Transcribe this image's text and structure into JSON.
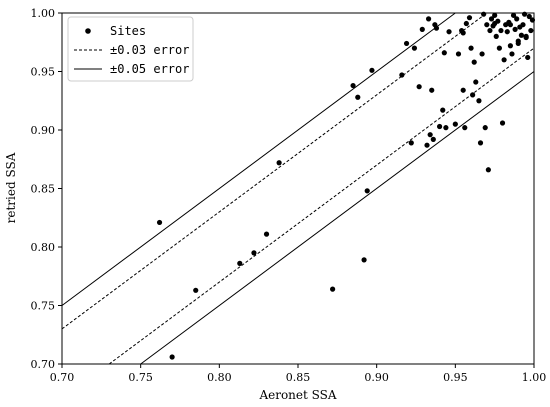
{
  "chart_data": {
    "type": "scatter",
    "xlabel": "Aeronet SSA",
    "ylabel": "retried SSA",
    "xlim": [
      0.7,
      1.0
    ],
    "ylim": [
      0.7,
      1.0
    ],
    "xticks": [
      "0.70",
      "0.75",
      "0.80",
      "0.85",
      "0.90",
      "0.95",
      "1.00"
    ],
    "yticks": [
      "0.70",
      "0.75",
      "0.80",
      "0.85",
      "0.90",
      "0.95",
      "1.00"
    ],
    "grid": false,
    "legend": {
      "placement": "top-left",
      "entries": [
        {
          "label": "Sites",
          "style": "marker"
        },
        {
          "label": "±0.03 error",
          "style": "dashed"
        },
        {
          "label": "±0.05 error",
          "style": "solid"
        }
      ]
    },
    "lines": [
      {
        "name": "±0.05 error",
        "style": "solid",
        "offset": 0.05
      },
      {
        "name": "±0.03 error",
        "style": "dashed",
        "offset": 0.03
      },
      {
        "name": "±0.03 error",
        "style": "dashed",
        "offset": -0.03
      },
      {
        "name": "±0.05 error",
        "style": "solid",
        "offset": -0.05
      }
    ],
    "series": [
      {
        "name": "Sites",
        "x": [
          0.762,
          0.77,
          0.785,
          0.813,
          0.822,
          0.83,
          0.838,
          0.872,
          0.885,
          0.888,
          0.892,
          0.894,
          0.897,
          0.916,
          0.919,
          0.922,
          0.924,
          0.927,
          0.929,
          0.932,
          0.933,
          0.934,
          0.935,
          0.936,
          0.937,
          0.938,
          0.94,
          0.942,
          0.943,
          0.944,
          0.946,
          0.95,
          0.952,
          0.954,
          0.955,
          0.956,
          0.957,
          0.959,
          0.96,
          0.961,
          0.963,
          0.965,
          0.966,
          0.967,
          0.968,
          0.969,
          0.97,
          0.971,
          0.972,
          0.973,
          0.974,
          0.975,
          0.976,
          0.977,
          0.978,
          0.979,
          0.98,
          0.981,
          0.982,
          0.983,
          0.984,
          0.985,
          0.986,
          0.987,
          0.988,
          0.989,
          0.99,
          0.991,
          0.992,
          0.993,
          0.994,
          0.995,
          0.996,
          0.997,
          0.998,
          0.999,
          0.995,
          0.99,
          0.985,
          0.975,
          0.962,
          0.955
        ],
        "y": [
          0.821,
          0.706,
          0.763,
          0.786,
          0.795,
          0.811,
          0.872,
          0.764,
          0.938,
          0.928,
          0.789,
          0.848,
          0.951,
          0.947,
          0.974,
          0.889,
          0.97,
          0.937,
          0.986,
          0.887,
          0.995,
          0.896,
          0.934,
          0.892,
          0.99,
          0.987,
          0.903,
          0.917,
          0.966,
          0.902,
          0.984,
          0.905,
          0.965,
          0.985,
          0.934,
          0.902,
          0.991,
          0.996,
          0.97,
          0.93,
          0.941,
          0.925,
          0.889,
          0.965,
          0.999,
          0.902,
          0.99,
          0.866,
          0.985,
          0.995,
          0.989,
          0.991,
          0.98,
          0.993,
          0.97,
          0.985,
          0.906,
          0.96,
          0.99,
          0.984,
          0.992,
          0.972,
          0.965,
          0.998,
          0.986,
          0.995,
          0.974,
          0.988,
          0.981,
          0.99,
          0.999,
          0.979,
          0.962,
          0.997,
          0.985,
          0.994,
          0.98,
          0.976,
          0.99,
          0.998,
          0.958,
          0.983
        ]
      }
    ]
  }
}
